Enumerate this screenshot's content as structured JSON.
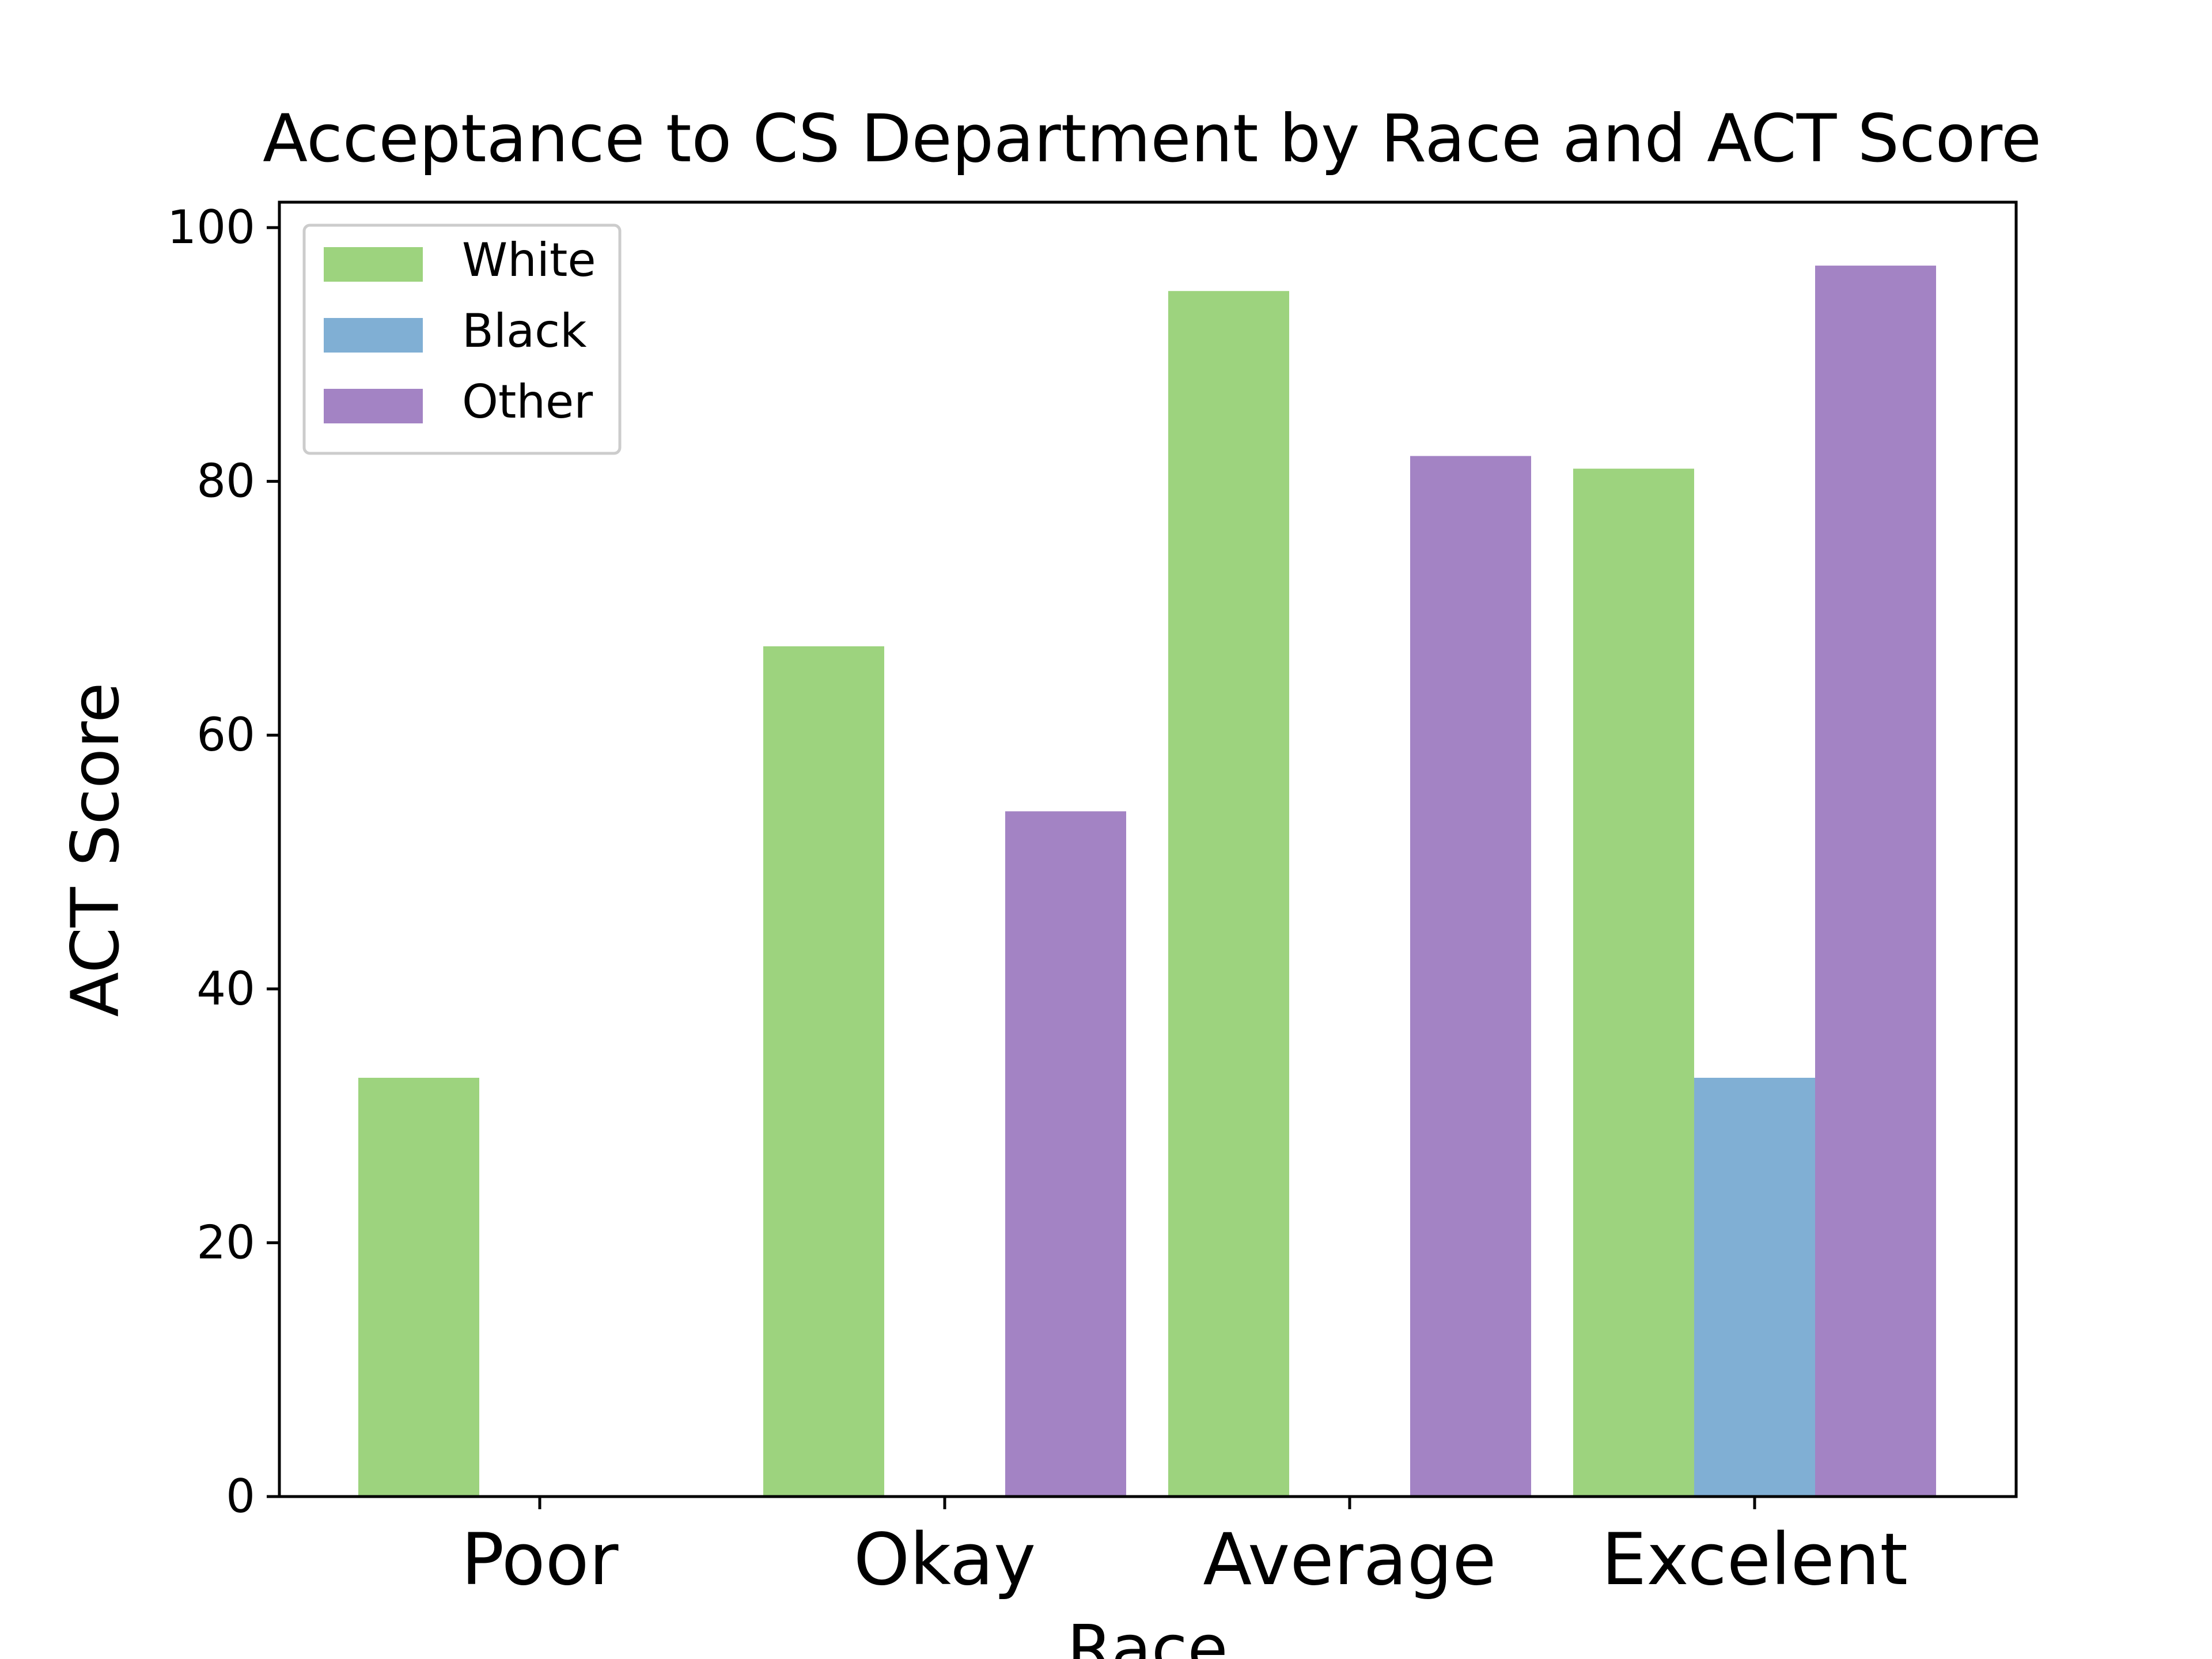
{
  "chart_data": {
    "type": "bar",
    "title": "Acceptance to CS Department by Race and ACT Score",
    "xlabel": "Race",
    "ylabel": "ACT Score",
    "categories": [
      "Poor",
      "Okay",
      "Average",
      "Excelent"
    ],
    "series": [
      {
        "name": "White",
        "color": "#9dd37e",
        "values": [
          33,
          67,
          95,
          81
        ]
      },
      {
        "name": "Black",
        "color": "#80afd4",
        "values": [
          0,
          0,
          0,
          33
        ]
      },
      {
        "name": "Other",
        "color": "#a383c4",
        "values": [
          0,
          54,
          82,
          97
        ]
      }
    ],
    "ylim": [
      0,
      102
    ],
    "yticks": [
      0,
      20,
      40,
      60,
      80,
      100
    ],
    "grid": false,
    "legend_position": "upper-left"
  }
}
